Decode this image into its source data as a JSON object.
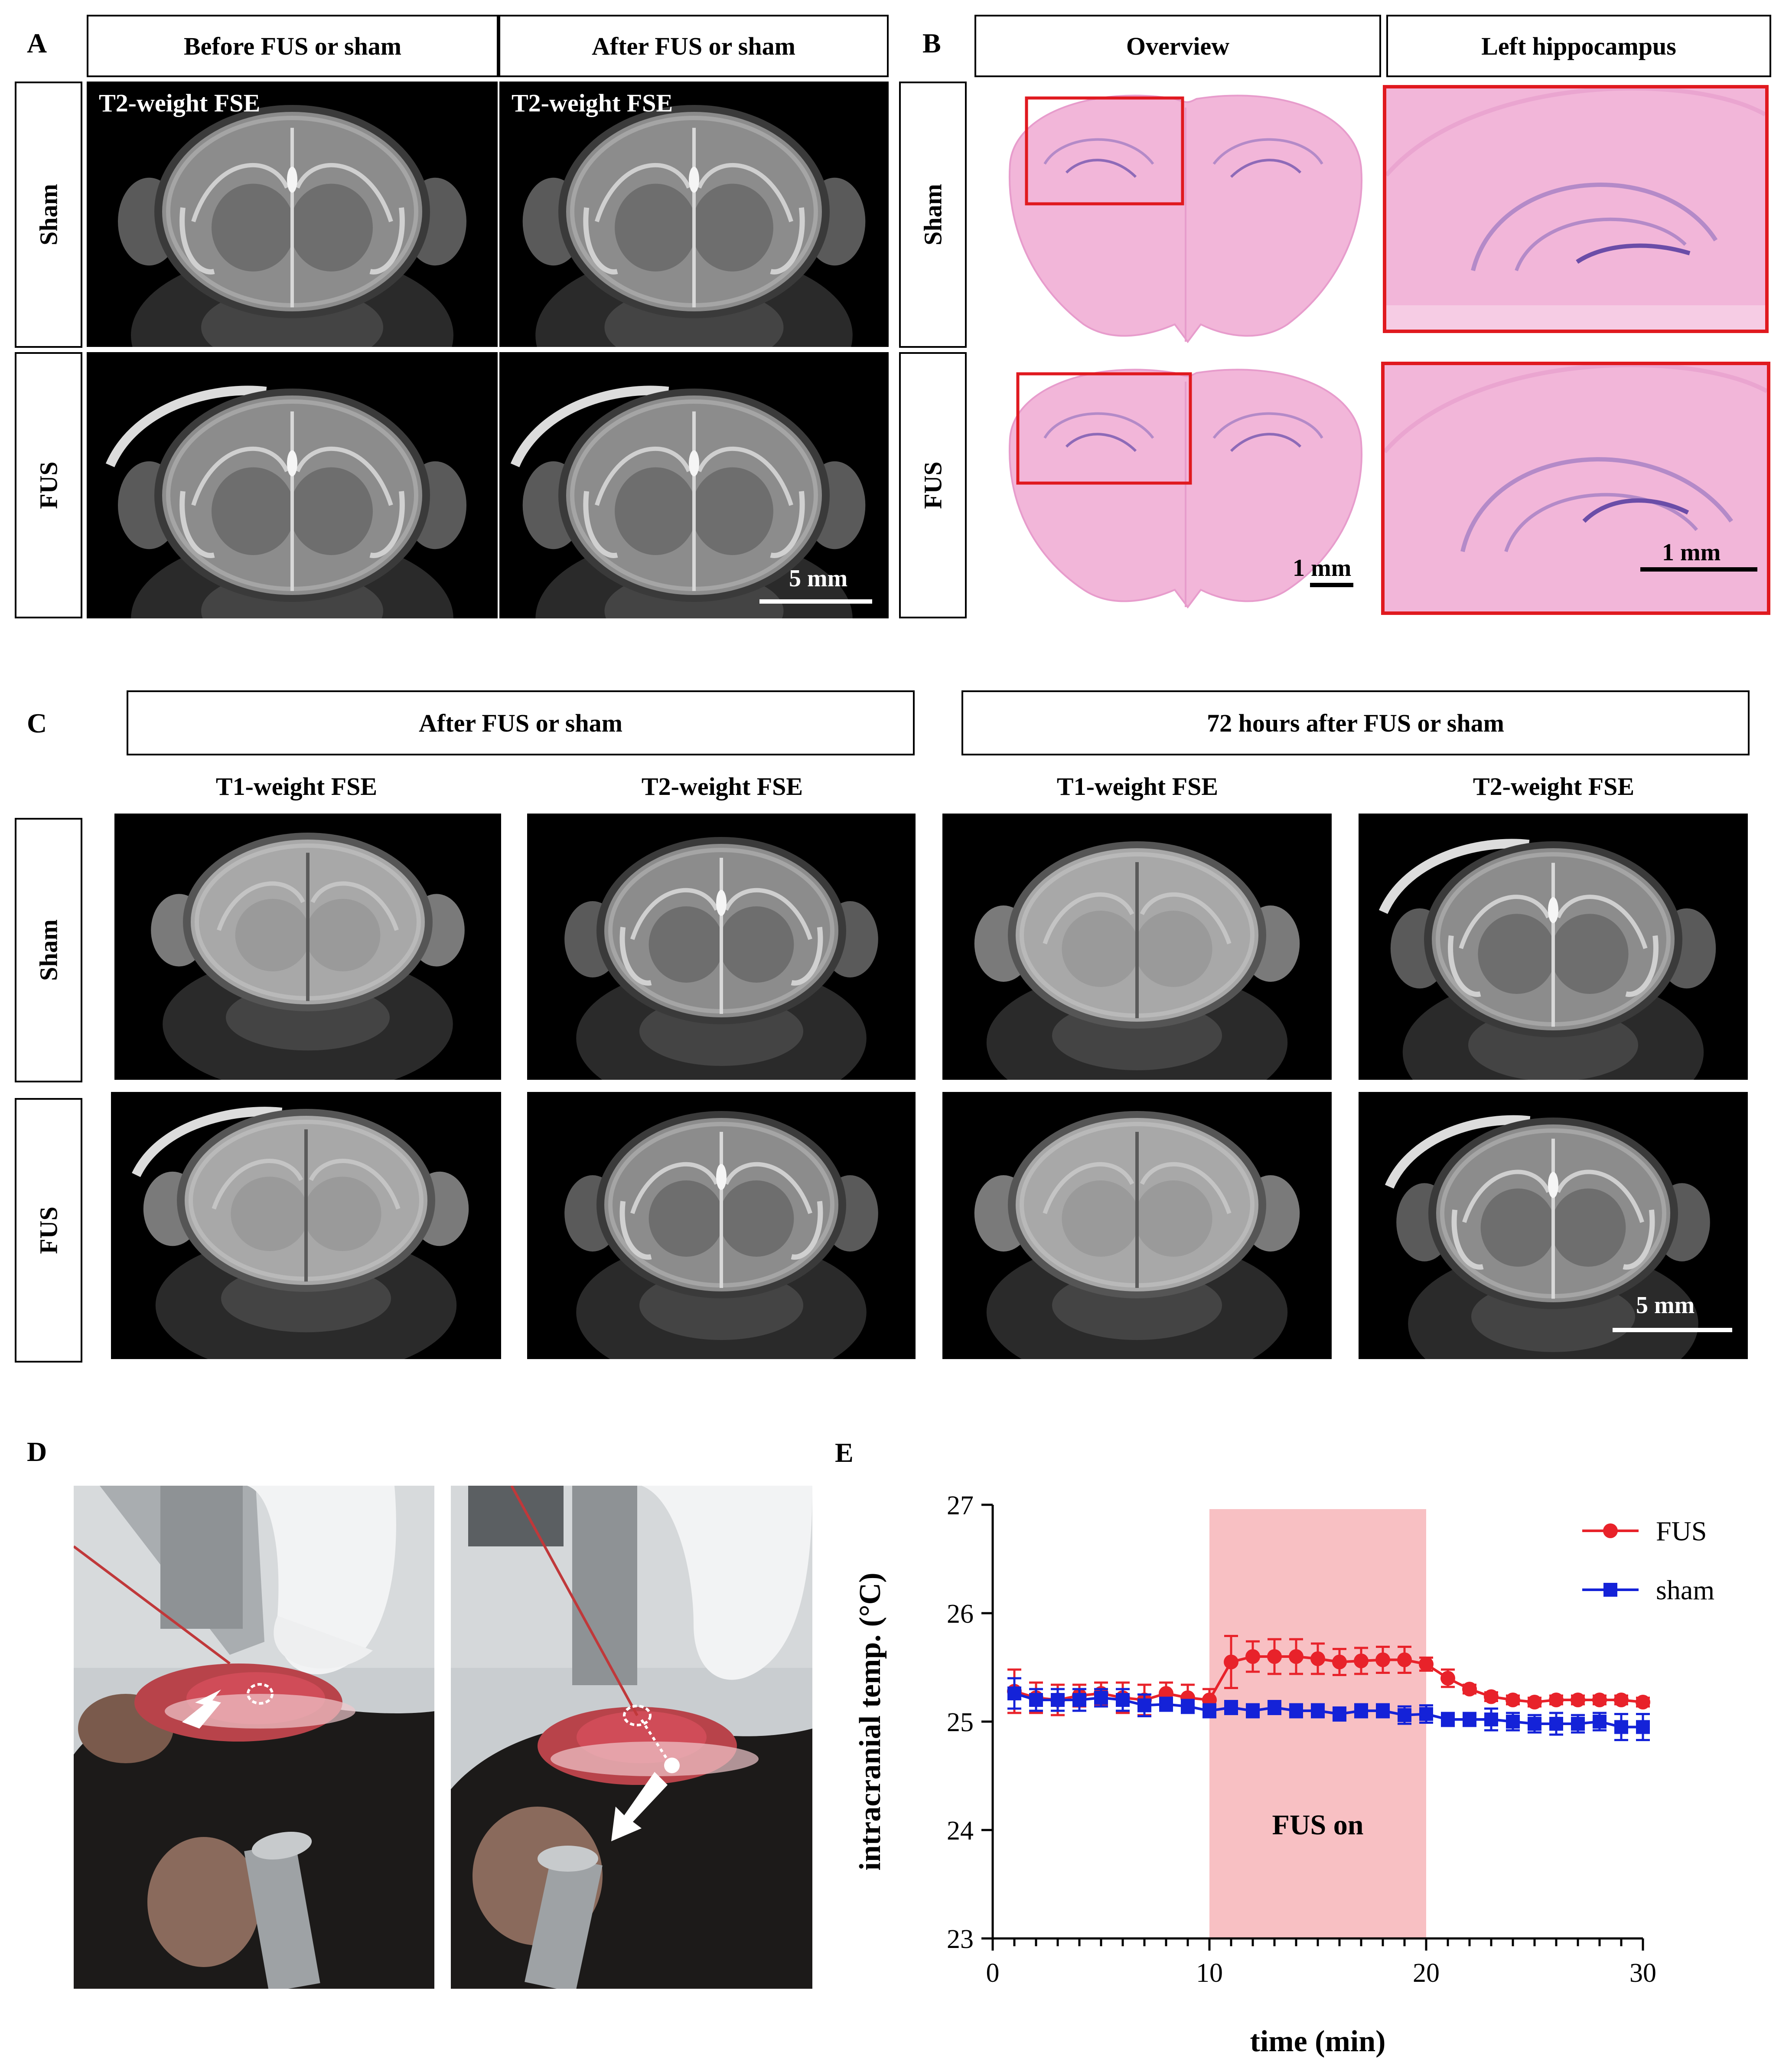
{
  "panel_labels": {
    "a": "A",
    "b": "B",
    "c": "C",
    "d": "D",
    "e": "E"
  },
  "panel_a": {
    "col_headers": [
      "Before FUS or sham",
      "After FUS or sham"
    ],
    "row_headers": [
      "Sham",
      "FUS"
    ],
    "sequence_label": "T2-weight FSE",
    "scale_bar": "5 mm"
  },
  "panel_b": {
    "col_headers": [
      "Overview",
      "Left hippocampus"
    ],
    "row_headers": [
      "Sham",
      "FUS"
    ],
    "scale_bar_overview": "1 mm",
    "scale_bar_zoom": "1 mm",
    "highlight_color": "#e0191f",
    "stain_color": "#f2b6d9"
  },
  "panel_c": {
    "group_headers": [
      "After FUS or sham",
      "72 hours after FUS or sham"
    ],
    "sequence_labels": [
      "T1-weight FSE",
      "T2-weight FSE",
      "T1-weight FSE",
      "T2-weight FSE"
    ],
    "row_headers": [
      "Sham",
      "FUS"
    ],
    "scale_bar": "5 mm"
  },
  "panel_d": {
    "images": [
      "photo-sham-setup",
      "photo-fus-setup"
    ]
  },
  "chart_data": {
    "type": "line",
    "xlabel": "time (min)",
    "ylabel": "intracranial temp. (°C)",
    "xlim": [
      0,
      30
    ],
    "ylim": [
      23,
      27
    ],
    "xticks": [
      0,
      10,
      20,
      30
    ],
    "yticks": [
      23,
      24,
      25,
      26,
      27
    ],
    "grid": false,
    "legend_position": "top-right",
    "shaded_region": {
      "x_start": 10,
      "x_end": 20,
      "label": "FUS on",
      "color": "#f8c0c3"
    },
    "x": [
      1,
      2,
      3,
      4,
      5,
      6,
      7,
      8,
      9,
      10,
      11,
      12,
      13,
      14,
      15,
      16,
      17,
      18,
      19,
      20,
      21,
      22,
      23,
      24,
      25,
      26,
      27,
      28,
      29,
      30
    ],
    "series": [
      {
        "name": "FUS",
        "color": "#e8222a",
        "marker": "circle",
        "values": [
          25.28,
          25.22,
          25.2,
          25.24,
          25.26,
          25.22,
          25.2,
          25.26,
          25.22,
          25.2,
          25.55,
          25.6,
          25.6,
          25.6,
          25.58,
          25.55,
          25.56,
          25.57,
          25.57,
          25.53,
          25.4,
          25.3,
          25.23,
          25.2,
          25.18,
          25.2,
          25.2,
          25.2,
          25.2,
          25.18
        ],
        "errors": [
          0.2,
          0.14,
          0.14,
          0.1,
          0.1,
          0.14,
          0.14,
          0.1,
          0.12,
          0.1,
          0.24,
          0.14,
          0.16,
          0.16,
          0.14,
          0.12,
          0.12,
          0.12,
          0.12,
          0.06,
          0.08,
          0.04,
          0.04,
          0.04,
          0.04,
          0.04,
          0.04,
          0.04,
          0.04,
          0.04
        ]
      },
      {
        "name": "sham",
        "color": "#1422d8",
        "marker": "square",
        "values": [
          25.26,
          25.2,
          25.2,
          25.2,
          25.22,
          25.2,
          25.15,
          25.16,
          25.14,
          25.1,
          25.13,
          25.1,
          25.13,
          25.1,
          25.1,
          25.07,
          25.1,
          25.1,
          25.06,
          25.07,
          25.02,
          25.02,
          25.02,
          25.0,
          24.98,
          24.98,
          24.98,
          25.0,
          24.95,
          24.95
        ],
        "errors": [
          0.14,
          0.1,
          0.1,
          0.1,
          0.08,
          0.1,
          0.1,
          0.06,
          0.06,
          0.06,
          0.06,
          0.06,
          0.06,
          0.06,
          0.06,
          0.06,
          0.06,
          0.06,
          0.08,
          0.08,
          0.06,
          0.06,
          0.1,
          0.08,
          0.08,
          0.1,
          0.08,
          0.08,
          0.12,
          0.12
        ]
      }
    ]
  }
}
